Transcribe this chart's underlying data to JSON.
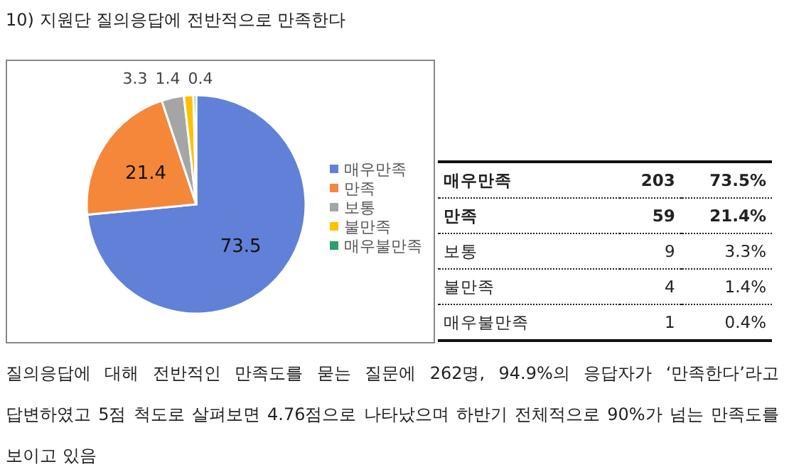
{
  "chart_data": {
    "type": "pie",
    "title": "10) 지원단 질의응답에 전반적으로 만족한다",
    "categories": [
      "매우만족",
      "만족",
      "보통",
      "불만족",
      "매우불만족"
    ],
    "values": [
      73.5,
      21.4,
      3.3,
      1.4,
      0.4
    ],
    "colors": [
      "#6181d8",
      "#f5873b",
      "#a5a5a5",
      "#ffc000",
      "#2e9e6a"
    ],
    "data_labels": true,
    "legend": "right",
    "annotations": [
      "매우만족",
      "203",
      "73.5%",
      "만족",
      "59",
      "21.4%",
      "보통",
      "9",
      "3.3%",
      "불만족",
      "4",
      "1.4%",
      "매우불만족",
      "1",
      "0.4%",
      "질의응답에 대해 전반적인 만족도를 묻는 질문에 262명, 94.9%의 응답자가 ‘만족한다’라고 답변하였고 5점 척도로 살펴보면 4.76점으로 나타났으며 하반기 전체적으로 90%가 넘는 만족도를 보이고 있음"
    ]
  }
}
